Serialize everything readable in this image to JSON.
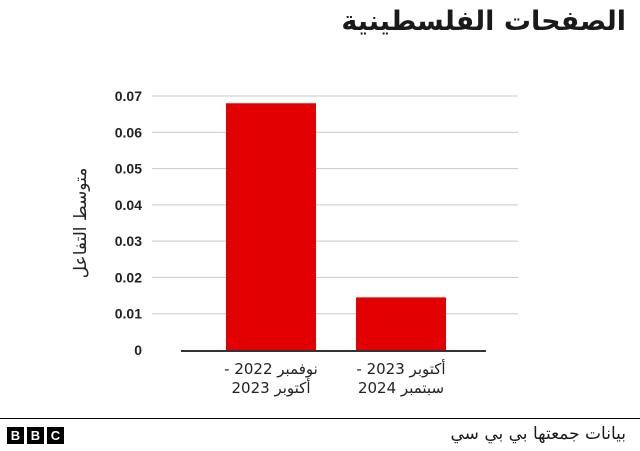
{
  "header": {
    "title": "الصفحات الفلسطينية"
  },
  "chart_data": {
    "type": "bar",
    "title": "الصفحات الفلسطينية",
    "categories": [
      [
        "نوفمبر 2022 -",
        "أكتوبر 2023"
      ],
      [
        "أكتوبر 2023 -",
        "سبتمبر 2024"
      ]
    ],
    "values": [
      0.068,
      0.0145
    ],
    "ylabel": "متوسط التفاعل",
    "xlabel": "",
    "ylim": [
      0,
      0.07
    ],
    "yticks": [
      "0",
      "0.01",
      "0.02",
      "0.03",
      "0.04",
      "0.05",
      "0.06",
      "0.07"
    ],
    "grid": true,
    "legend": "none",
    "bar_color": "#e30000"
  },
  "footer": {
    "logo_letters": [
      "B",
      "B",
      "C"
    ],
    "source": "بيانات جمعتها بي بي سي"
  }
}
